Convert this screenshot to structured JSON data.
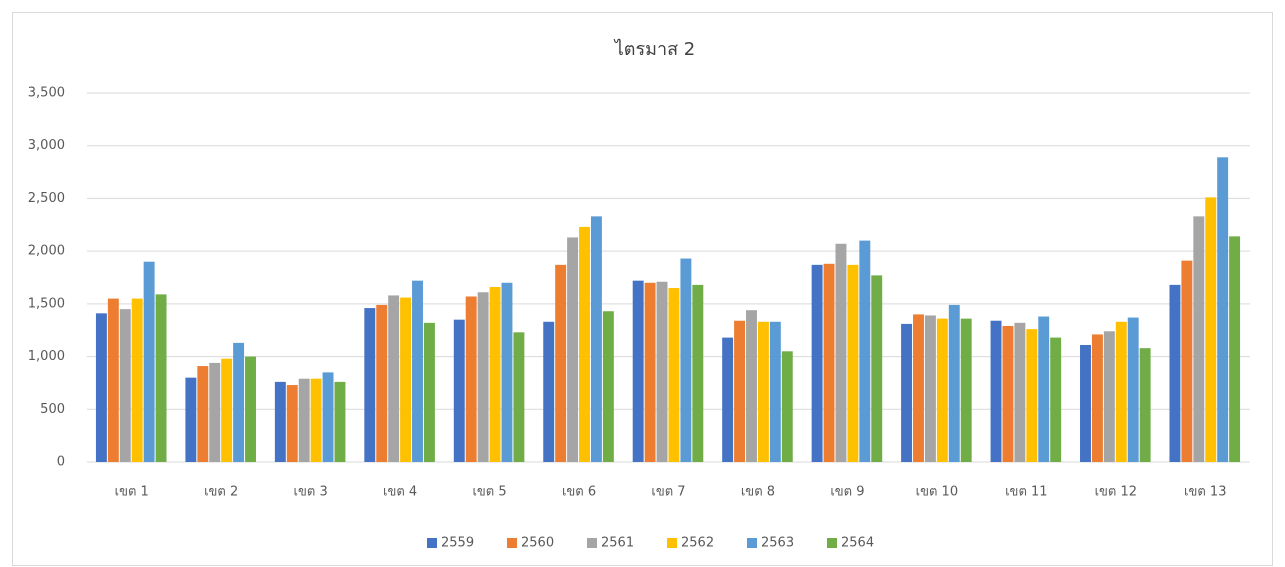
{
  "chart_data": {
    "type": "bar",
    "title": "ไตรมาส 2",
    "categories": [
      "เขต 1",
      "เขต 2",
      "เขต 3",
      "เขต 4",
      "เขต 5",
      "เขต 6",
      "เขต 7",
      "เขต 8",
      "เขต 9",
      "เขต 10",
      "เขต 11",
      "เขต 12",
      "เขต 13"
    ],
    "series": [
      {
        "name": "2559",
        "color": "#4472c4",
        "values": [
          1410,
          800,
          760,
          1460,
          1350,
          1330,
          1720,
          1180,
          1870,
          1310,
          1340,
          1110,
          1680
        ]
      },
      {
        "name": "2560",
        "color": "#ed7d31",
        "values": [
          1550,
          910,
          730,
          1490,
          1570,
          1870,
          1700,
          1340,
          1880,
          1400,
          1290,
          1210,
          1910
        ]
      },
      {
        "name": "2561",
        "color": "#a5a5a5",
        "values": [
          1450,
          940,
          790,
          1580,
          1610,
          2130,
          1710,
          1440,
          2070,
          1390,
          1320,
          1240,
          2330
        ]
      },
      {
        "name": "2562",
        "color": "#ffc000",
        "values": [
          1550,
          980,
          790,
          1560,
          1660,
          2230,
          1650,
          1330,
          1870,
          1360,
          1260,
          1330,
          2510
        ]
      },
      {
        "name": "2563",
        "color": "#5b9bd5",
        "values": [
          1900,
          1130,
          850,
          1720,
          1700,
          2330,
          1930,
          1330,
          2100,
          1490,
          1380,
          1370,
          2890
        ]
      },
      {
        "name": "2564",
        "color": "#70ad47",
        "values": [
          1590,
          1000,
          760,
          1320,
          1230,
          1430,
          1680,
          1050,
          1770,
          1360,
          1180,
          1080,
          2140
        ]
      }
    ],
    "ylim": [
      0,
      3500
    ],
    "yticks": [
      0,
      500,
      {
        "value": 1000,
        "label": "1,000"
      },
      {
        "value": 1500,
        "label": "1,500"
      },
      {
        "value": 2000,
        "label": "2,000"
      },
      {
        "value": 2500,
        "label": "2,500"
      },
      {
        "value": 3000,
        "label": "3,000"
      },
      {
        "value": 3500,
        "label": "3,500"
      }
    ],
    "grid": true,
    "legend": "bottom"
  }
}
